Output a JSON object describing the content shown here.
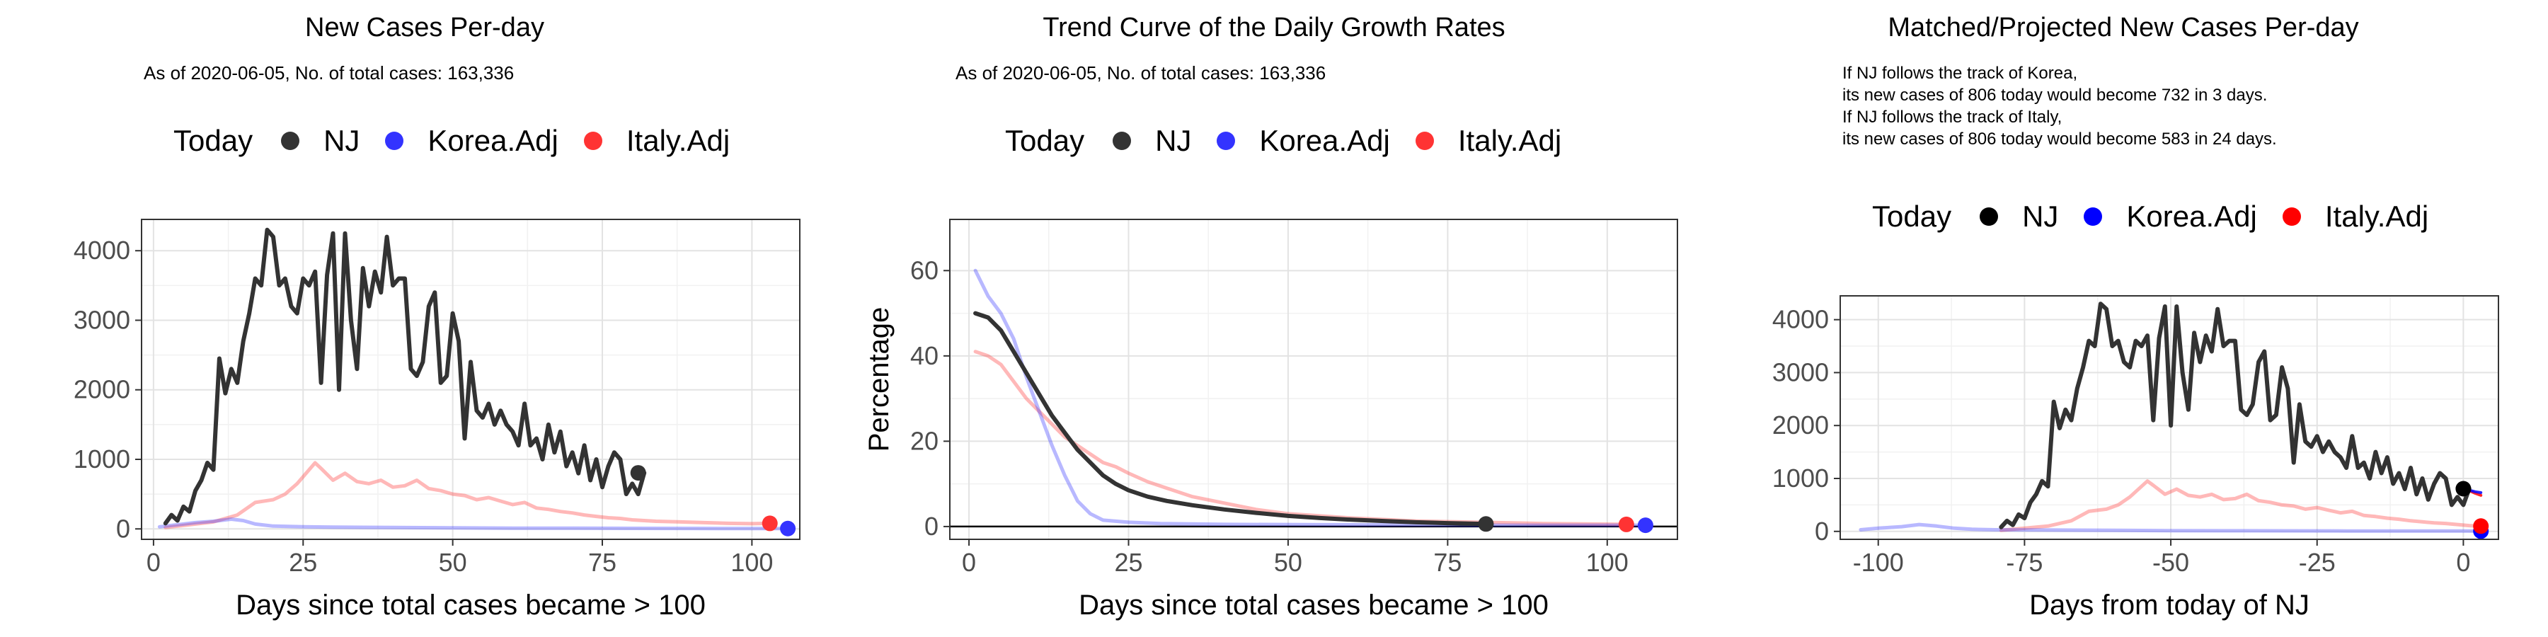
{
  "legend": {
    "title": "Today",
    "items": [
      {
        "label": "NJ",
        "color": "#333333"
      },
      {
        "label": "Korea.Adj",
        "color": "#3333ff"
      },
      {
        "label": "Italy.Adj",
        "color": "#ff3333"
      }
    ]
  },
  "panel3_legend_colors": [
    "#000000",
    "#0000ff",
    "#ff0000"
  ],
  "chart_data": [
    {
      "type": "line",
      "title": "New Cases Per-day",
      "subtitle": "As of 2020-06-05, No. of total cases: 163,336",
      "xlabel": "Days since total cases became > 100",
      "ylabel": "",
      "xlim": [
        -2,
        108
      ],
      "ylim": [
        -150,
        4450
      ],
      "xticks": [
        0,
        25,
        50,
        75,
        100
      ],
      "yticks": [
        0,
        1000,
        2000,
        3000,
        4000
      ],
      "grid": true,
      "legend_position": "top",
      "series": [
        {
          "name": "NJ",
          "color": "#333333",
          "x_start": 2,
          "values": [
            80,
            200,
            120,
            320,
            250,
            550,
            700,
            950,
            850,
            2450,
            1950,
            2300,
            2100,
            2700,
            3100,
            3600,
            3500,
            4300,
            4200,
            3500,
            3600,
            3200,
            3100,
            3600,
            3500,
            3700,
            2100,
            3650,
            4250,
            2000,
            4250,
            3000,
            2300,
            3750,
            3200,
            3700,
            3400,
            4200,
            3500,
            3600,
            3600,
            2300,
            2200,
            2400,
            3200,
            3400,
            2100,
            2200,
            3100,
            2700,
            1300,
            2400,
            1700,
            1600,
            1800,
            1500,
            1700,
            1500,
            1400,
            1200,
            1800,
            1200,
            1300,
            1000,
            1500,
            1100,
            1400,
            900,
            1100,
            800,
            1200,
            700,
            1000,
            600,
            900,
            1100,
            1000,
            500,
            650,
            500,
            806
          ]
        },
        {
          "name": "Korea.Adj",
          "color": "#3333ff",
          "points": [
            [
              1,
              30
            ],
            [
              4,
              60
            ],
            [
              7,
              90
            ],
            [
              10,
              110
            ],
            [
              13,
              140
            ],
            [
              15,
              120
            ],
            [
              17,
              70
            ],
            [
              20,
              40
            ],
            [
              25,
              30
            ],
            [
              30,
              25
            ],
            [
              40,
              20
            ],
            [
              50,
              15
            ],
            [
              60,
              10
            ],
            [
              70,
              10
            ],
            [
              80,
              8
            ],
            [
              90,
              7
            ],
            [
              100,
              5
            ],
            [
              106,
              5
            ]
          ]
        },
        {
          "name": "Italy.Adj",
          "color": "#ff3333",
          "points": [
            [
              2,
              20
            ],
            [
              6,
              60
            ],
            [
              10,
              100
            ],
            [
              14,
              200
            ],
            [
              17,
              380
            ],
            [
              20,
              420
            ],
            [
              22,
              500
            ],
            [
              24,
              650
            ],
            [
              26,
              850
            ],
            [
              27,
              950
            ],
            [
              28,
              870
            ],
            [
              30,
              700
            ],
            [
              32,
              800
            ],
            [
              34,
              680
            ],
            [
              36,
              650
            ],
            [
              38,
              700
            ],
            [
              40,
              600
            ],
            [
              42,
              620
            ],
            [
              44,
              700
            ],
            [
              46,
              580
            ],
            [
              48,
              550
            ],
            [
              50,
              500
            ],
            [
              52,
              480
            ],
            [
              54,
              420
            ],
            [
              56,
              450
            ],
            [
              58,
              400
            ],
            [
              60,
              350
            ],
            [
              62,
              380
            ],
            [
              64,
              300
            ],
            [
              66,
              280
            ],
            [
              68,
              250
            ],
            [
              70,
              230
            ],
            [
              72,
              200
            ],
            [
              74,
              180
            ],
            [
              76,
              160
            ],
            [
              78,
              150
            ],
            [
              80,
              130
            ],
            [
              84,
              110
            ],
            [
              88,
              100
            ],
            [
              92,
              90
            ],
            [
              96,
              80
            ],
            [
              100,
              75
            ],
            [
              103,
              80
            ]
          ]
        }
      ],
      "today_points": [
        {
          "name": "NJ",
          "x": 81,
          "y": 806
        },
        {
          "name": "Korea.Adj",
          "x": 106,
          "y": 5
        },
        {
          "name": "Italy.Adj",
          "x": 103,
          "y": 80
        }
      ]
    },
    {
      "type": "line",
      "title": "Trend Curve of the Daily Growth Rates",
      "subtitle": "As of 2020-06-05, No. of total cases: 163,336",
      "xlabel": "Days since total cases became > 100",
      "ylabel": "Percentage",
      "xlim": [
        -3,
        111
      ],
      "ylim": [
        -3,
        72
      ],
      "xticks": [
        0,
        25,
        50,
        75,
        100
      ],
      "yticks": [
        0,
        20,
        40,
        60
      ],
      "grid": true,
      "hline_y": 0,
      "legend_position": "top",
      "series": [
        {
          "name": "NJ",
          "color": "#333333",
          "points": [
            [
              1,
              50
            ],
            [
              3,
              49
            ],
            [
              5,
              46
            ],
            [
              7,
              41
            ],
            [
              9,
              36
            ],
            [
              11,
              31
            ],
            [
              13,
              26
            ],
            [
              15,
              22
            ],
            [
              17,
              18
            ],
            [
              19,
              15
            ],
            [
              21,
              12
            ],
            [
              23,
              10
            ],
            [
              25,
              8.5
            ],
            [
              28,
              7
            ],
            [
              31,
              6
            ],
            [
              35,
              5
            ],
            [
              40,
              4
            ],
            [
              45,
              3.2
            ],
            [
              50,
              2.5
            ],
            [
              55,
              2
            ],
            [
              60,
              1.6
            ],
            [
              65,
              1.3
            ],
            [
              70,
              1
            ],
            [
              75,
              0.8
            ],
            [
              81,
              0.6
            ]
          ]
        },
        {
          "name": "Korea.Adj",
          "color": "#3333ff",
          "points": [
            [
              1,
              60
            ],
            [
              3,
              54
            ],
            [
              5,
              50
            ],
            [
              7,
              44
            ],
            [
              9,
              35
            ],
            [
              11,
              27
            ],
            [
              13,
              19
            ],
            [
              15,
              12
            ],
            [
              17,
              6
            ],
            [
              19,
              3
            ],
            [
              21,
              1.5
            ],
            [
              25,
              1
            ],
            [
              30,
              0.7
            ],
            [
              40,
              0.5
            ],
            [
              60,
              0.4
            ],
            [
              80,
              0.3
            ],
            [
              106,
              0.3
            ]
          ]
        },
        {
          "name": "Italy.Adj",
          "color": "#ff3333",
          "points": [
            [
              1,
              41
            ],
            [
              3,
              40
            ],
            [
              5,
              38
            ],
            [
              7,
              34
            ],
            [
              9,
              30
            ],
            [
              11,
              27
            ],
            [
              13,
              24
            ],
            [
              15,
              21
            ],
            [
              17,
              19
            ],
            [
              19,
              17
            ],
            [
              21,
              15
            ],
            [
              23,
              14
            ],
            [
              25,
              12.5
            ],
            [
              28,
              10.5
            ],
            [
              31,
              9
            ],
            [
              35,
              7
            ],
            [
              40,
              5.5
            ],
            [
              45,
              4
            ],
            [
              50,
              3
            ],
            [
              55,
              2.5
            ],
            [
              60,
              2
            ],
            [
              70,
              1.3
            ],
            [
              80,
              1
            ],
            [
              90,
              0.7
            ],
            [
              103,
              0.5
            ]
          ]
        }
      ],
      "today_points": [
        {
          "name": "NJ",
          "x": 81,
          "y": 0.6
        },
        {
          "name": "Korea.Adj",
          "x": 106,
          "y": 0.3
        },
        {
          "name": "Italy.Adj",
          "x": 103,
          "y": 0.5
        }
      ]
    },
    {
      "type": "line",
      "title": "Matched/Projected New Cases Per-day",
      "notes": [
        "If NJ follows the track of Korea,",
        "its new cases of 806 today would become 732 in 3 days.",
        "If NJ follows the track of Italy,",
        "its new cases of 806 today would become 583 in 24 days."
      ],
      "xlabel": "Days from today of NJ",
      "ylabel": "",
      "xlim": [
        -106.5,
        6
      ],
      "ylim": [
        -150,
        4450
      ],
      "xticks": [
        -100,
        -75,
        -50,
        -25,
        0
      ],
      "yticks": [
        0,
        1000,
        2000,
        3000,
        4000
      ],
      "grid": true,
      "legend_position": "top",
      "series": [
        {
          "name": "NJ",
          "color": "#333333",
          "x_start": -79,
          "values": [
            80,
            200,
            120,
            320,
            250,
            550,
            700,
            950,
            850,
            2450,
            1950,
            2300,
            2100,
            2700,
            3100,
            3600,
            3500,
            4300,
            4200,
            3500,
            3600,
            3200,
            3100,
            3600,
            3500,
            3700,
            2100,
            3650,
            4250,
            2000,
            4250,
            3000,
            2300,
            3750,
            3200,
            3700,
            3400,
            4200,
            3500,
            3600,
            3600,
            2300,
            2200,
            2400,
            3200,
            3400,
            2100,
            2200,
            3100,
            2700,
            1300,
            2400,
            1700,
            1600,
            1800,
            1500,
            1700,
            1500,
            1400,
            1200,
            1800,
            1200,
            1300,
            1000,
            1500,
            1100,
            1400,
            900,
            1100,
            800,
            1200,
            700,
            1000,
            600,
            900,
            1100,
            1000,
            500,
            650,
            500,
            806
          ]
        },
        {
          "name": "Korea.Adj",
          "color": "#3333ff",
          "points": [
            [
              -103,
              30
            ],
            [
              -100,
              60
            ],
            [
              -96,
              90
            ],
            [
              -93,
              130
            ],
            [
              -90,
              100
            ],
            [
              -87,
              60
            ],
            [
              -84,
              40
            ],
            [
              -80,
              30
            ],
            [
              -70,
              25
            ],
            [
              -60,
              20
            ],
            [
              -50,
              15
            ],
            [
              -40,
              12
            ],
            [
              -30,
              10
            ],
            [
              -20,
              8
            ],
            [
              -10,
              7
            ],
            [
              0,
              6
            ],
            [
              3,
              5
            ]
          ]
        },
        {
          "name": "Italy.Adj",
          "color": "#ff3333",
          "points": [
            [
              -79,
              20
            ],
            [
              -75,
              60
            ],
            [
              -71,
              100
            ],
            [
              -67,
              200
            ],
            [
              -64,
              380
            ],
            [
              -61,
              420
            ],
            [
              -59,
              500
            ],
            [
              -57,
              650
            ],
            [
              -55,
              850
            ],
            [
              -54,
              950
            ],
            [
              -53,
              870
            ],
            [
              -51,
              700
            ],
            [
              -49,
              800
            ],
            [
              -47,
              680
            ],
            [
              -45,
              650
            ],
            [
              -43,
              700
            ],
            [
              -41,
              600
            ],
            [
              -39,
              620
            ],
            [
              -37,
              700
            ],
            [
              -35,
              580
            ],
            [
              -33,
              550
            ],
            [
              -31,
              500
            ],
            [
              -29,
              480
            ],
            [
              -27,
              420
            ],
            [
              -25,
              450
            ],
            [
              -23,
              400
            ],
            [
              -21,
              350
            ],
            [
              -19,
              380
            ],
            [
              -17,
              300
            ],
            [
              -15,
              280
            ],
            [
              -13,
              250
            ],
            [
              -11,
              230
            ],
            [
              -9,
              200
            ],
            [
              -7,
              180
            ],
            [
              -5,
              160
            ],
            [
              -3,
              150
            ],
            [
              -1,
              130
            ],
            [
              1,
              110
            ],
            [
              3,
              100
            ]
          ]
        },
        {
          "name": "Korea projection",
          "color": "#0000ff",
          "points": [
            [
              0,
              806
            ],
            [
              1,
              780
            ],
            [
              2,
              750
            ],
            [
              3,
              732
            ]
          ]
        },
        {
          "name": "Italy projection",
          "color": "#ff0000",
          "points": [
            [
              0,
              806
            ],
            [
              1,
              770
            ],
            [
              2,
              720
            ],
            [
              3,
              680
            ]
          ]
        }
      ],
      "today_points": [
        {
          "name": "NJ",
          "x": 0,
          "y": 806
        },
        {
          "name": "Korea.Adj",
          "x": 3,
          "y": 5
        },
        {
          "name": "Italy.Adj",
          "x": 3,
          "y": 100
        }
      ]
    }
  ]
}
